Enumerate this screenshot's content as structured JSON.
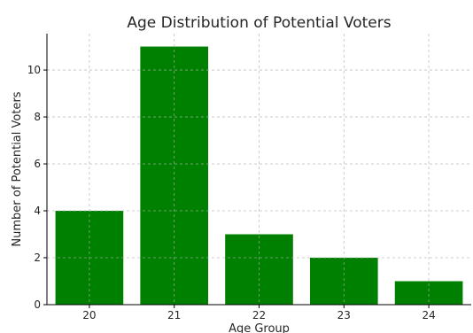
{
  "chart_data": {
    "type": "bar",
    "title": "Age Distribution of Potential Voters",
    "xlabel": "Age Group",
    "ylabel": "Number of Potential Voters",
    "categories": [
      "20",
      "21",
      "22",
      "23",
      "24"
    ],
    "values": [
      4,
      11,
      3,
      2,
      1
    ],
    "ylim": [
      0,
      11.55
    ],
    "yticks": [
      0,
      2,
      4,
      6,
      8,
      10
    ],
    "grid": true,
    "bar_color": "#008000"
  }
}
